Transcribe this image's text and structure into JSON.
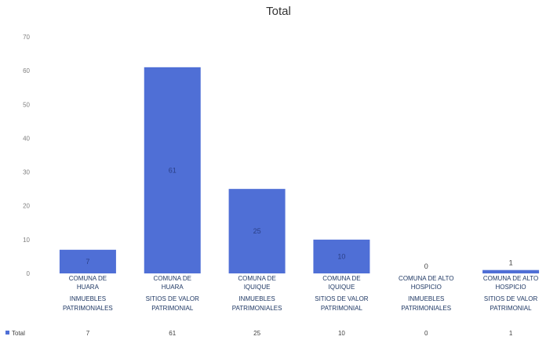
{
  "chart_data": {
    "type": "bar",
    "title": "Total",
    "xlabel": "",
    "ylabel": "",
    "ylim": [
      0,
      70
    ],
    "yticks": [
      0,
      10,
      20,
      30,
      40,
      50,
      60,
      70
    ],
    "grid": false,
    "legend_position": "bottom-left",
    "bar_color": "#4f6fd6",
    "categories": [
      {
        "group": "COMUNA DE HUARA",
        "sub": "INMUEBLES PATRIMONIALES",
        "group_lines": [
          "COMUNA DE",
          "HUARA"
        ],
        "sub_lines": [
          "INMUEBLES",
          "PATRIMONIALES"
        ]
      },
      {
        "group": "COMUNA DE HUARA",
        "sub": "SITIOS DE VALOR PATRIMONIAL",
        "group_lines": [
          "COMUNA DE",
          "HUARA"
        ],
        "sub_lines": [
          "SITIOS DE VALOR",
          "PATRIMONIAL"
        ]
      },
      {
        "group": "COMUNA DE IQUIQUE",
        "sub": "INMUEBLES PATRIMONIALES",
        "group_lines": [
          "COMUNA DE",
          "IQUIQUE"
        ],
        "sub_lines": [
          "INMUEBLES",
          "PATRIMONIALES"
        ]
      },
      {
        "group": "COMUNA DE IQUIQUE",
        "sub": "SITIOS DE VALOR PATRIMONIAL",
        "group_lines": [
          "COMUNA DE",
          "IQUIQUE"
        ],
        "sub_lines": [
          "SITIOS DE VALOR",
          "PATRIMONIAL"
        ]
      },
      {
        "group": "COMUNA DE ALTO HOSPICIO",
        "sub": "INMUEBLES PATRIMONIALES",
        "group_lines": [
          "COMUNA DE ALTO",
          "HOSPICIO"
        ],
        "sub_lines": [
          "INMUEBLES",
          "PATRIMONIALES"
        ]
      },
      {
        "group": "COMUNA DE ALTO HOSPICIO",
        "sub": "SITIOS DE VALOR PATRIMONIAL",
        "group_lines": [
          "COMUNA DE ALTO",
          "HOSPICIO"
        ],
        "sub_lines": [
          "SITIOS DE VALOR",
          "PATRIMONIAL"
        ]
      }
    ],
    "series": [
      {
        "name": "Total",
        "values": [
          7,
          61,
          25,
          10,
          0,
          1
        ]
      }
    ]
  }
}
